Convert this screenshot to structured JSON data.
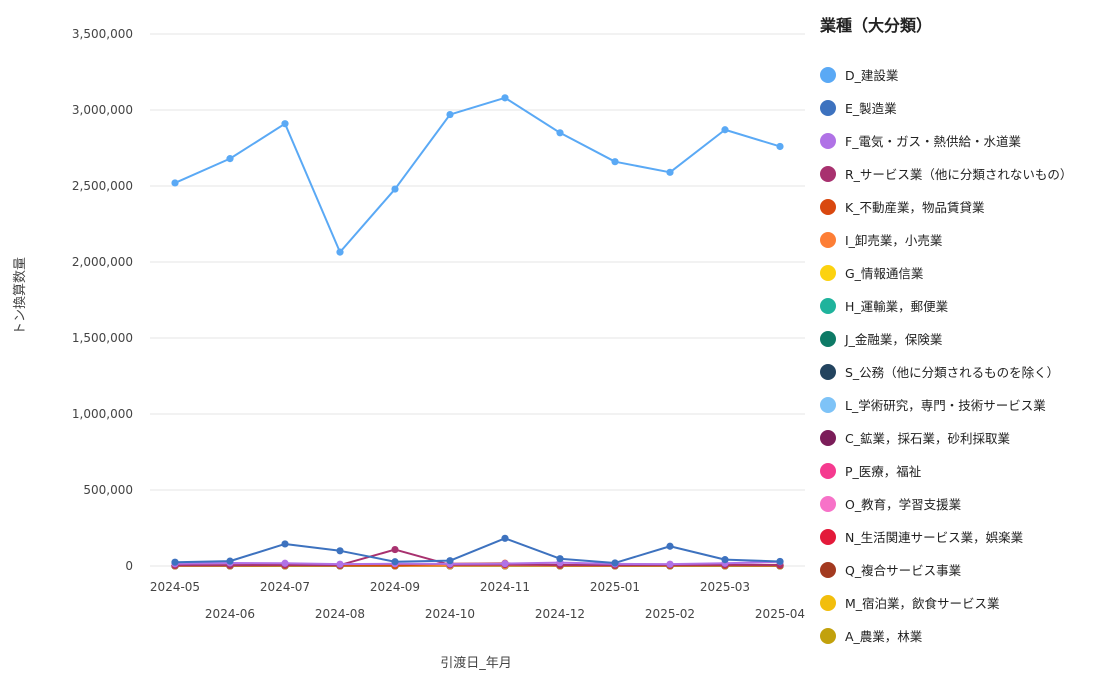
{
  "chart_data": {
    "type": "line",
    "title": "",
    "xlabel": "引渡日_年月",
    "ylabel": "トン換算数量",
    "ylim": [
      0,
      3500000
    ],
    "yticks": [
      0,
      500000,
      1000000,
      1500000,
      2000000,
      2500000,
      3000000,
      3500000
    ],
    "ytick_labels": [
      "0",
      "500,000",
      "1,000,000",
      "1,500,000",
      "2,000,000",
      "2,500,000",
      "3,000,000",
      "3,500,000"
    ],
    "categories": [
      "2024-05",
      "2024-06",
      "2024-07",
      "2024-08",
      "2024-09",
      "2024-10",
      "2024-11",
      "2024-12",
      "2025-01",
      "2025-02",
      "2025-03",
      "2025-04"
    ],
    "legend_title": "業種（大分類）",
    "legend_position": "right",
    "grid": true,
    "series": [
      {
        "name": "D_建設業",
        "color": "#5aa9f5",
        "values": [
          2520000,
          2680000,
          2910000,
          2065000,
          2480000,
          2970000,
          3080000,
          2850000,
          2660000,
          2590000,
          2870000,
          2760000
        ]
      },
      {
        "name": "E_製造業",
        "color": "#3d72bf",
        "values": [
          25000,
          32000,
          145000,
          100000,
          28000,
          35000,
          182000,
          48000,
          20000,
          130000,
          42000,
          30000
        ]
      },
      {
        "name": "F_電気・ガス・熱供給・水道業",
        "color": "#b072e6",
        "values": [
          15000,
          20000,
          18000,
          12000,
          15000,
          14000,
          16000,
          22000,
          14000,
          12000,
          18000,
          28000
        ]
      },
      {
        "name": "R_サービス業（他に分類されないもの）",
        "color": "#a8316f",
        "values": [
          5000,
          6000,
          7000,
          6000,
          108000,
          8000,
          9000,
          7000,
          6000,
          7000,
          8000,
          7000
        ]
      },
      {
        "name": "K_不動産業，物品賃貸業",
        "color": "#d9480f",
        "values": [
          3000,
          3000,
          4000,
          3000,
          3000,
          15000,
          18000,
          4000,
          3000,
          3000,
          4000,
          3000
        ]
      },
      {
        "name": "I_卸売業，小売業",
        "color": "#fd7e35",
        "values": [
          2000,
          2500,
          3000,
          2500,
          2000,
          2500,
          3000,
          2500,
          2000,
          2500,
          3000,
          2500
        ]
      },
      {
        "name": "G_情報通信業",
        "color": "#fcd20f",
        "values": [
          1500,
          1500,
          1500,
          1500,
          1500,
          1500,
          1500,
          1500,
          1500,
          1500,
          1500,
          1500
        ]
      },
      {
        "name": "H_運輸業，郵便業",
        "color": "#1fb39c",
        "values": [
          1000,
          1000,
          1000,
          1000,
          1000,
          1000,
          1000,
          1000,
          1000,
          1000,
          1000,
          1000
        ]
      },
      {
        "name": "J_金融業，保険業",
        "color": "#0d7a66",
        "values": [
          800,
          800,
          800,
          800,
          800,
          800,
          800,
          800,
          800,
          800,
          800,
          800
        ]
      },
      {
        "name": "S_公務（他に分類されるものを除く）",
        "color": "#23445f",
        "values": [
          600,
          600,
          600,
          600,
          600,
          600,
          600,
          600,
          600,
          600,
          600,
          600
        ]
      },
      {
        "name": "L_学術研究，専門・技術サービス業",
        "color": "#7ec3f7",
        "values": [
          500,
          500,
          500,
          500,
          500,
          500,
          500,
          500,
          500,
          500,
          500,
          500
        ]
      },
      {
        "name": "C_鉱業，採石業，砂利採取業",
        "color": "#7b1d59",
        "values": [
          400,
          400,
          400,
          400,
          400,
          400,
          400,
          400,
          400,
          400,
          400,
          400
        ]
      },
      {
        "name": "P_医療，福祉",
        "color": "#f53a8f",
        "values": [
          300,
          300,
          300,
          300,
          300,
          300,
          300,
          300,
          2000,
          300,
          300,
          300
        ]
      },
      {
        "name": "O_教育，学習支援業",
        "color": "#f772c8",
        "values": [
          300,
          300,
          300,
          300,
          300,
          300,
          300,
          300,
          300,
          300,
          300,
          300
        ]
      },
      {
        "name": "N_生活関連サービス業，娯楽業",
        "color": "#e31a3a",
        "values": [
          200,
          200,
          200,
          200,
          200,
          200,
          200,
          200,
          200,
          200,
          200,
          200
        ]
      },
      {
        "name": "Q_複合サービス事業",
        "color": "#a33a20",
        "values": [
          200,
          200,
          200,
          200,
          200,
          200,
          200,
          200,
          200,
          200,
          200,
          200
        ]
      },
      {
        "name": "M_宿泊業，飲食サービス業",
        "color": "#f2be0c",
        "values": [
          3000,
          2000,
          1500,
          1000,
          2000,
          2000,
          1500,
          1000,
          1500,
          1000,
          1500,
          1000
        ]
      },
      {
        "name": "A_農業，林業",
        "color": "#c2a10c",
        "values": [
          200,
          200,
          200,
          200,
          200,
          200,
          200,
          200,
          200,
          200,
          200,
          200
        ]
      }
    ]
  }
}
